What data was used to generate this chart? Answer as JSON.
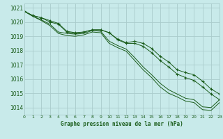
{
  "title": "Graphe pression niveau de la mer (hPa)",
  "background_color": "#c8eaea",
  "grid_color": "#aacccc",
  "line_color": "#1a5c1a",
  "marker_color": "#1a5c1a",
  "xlim": [
    0,
    23
  ],
  "ylim": [
    1013.5,
    1021.3
  ],
  "xticks": [
    0,
    1,
    2,
    3,
    4,
    5,
    6,
    7,
    8,
    9,
    10,
    11,
    12,
    13,
    14,
    15,
    16,
    17,
    18,
    19,
    20,
    21,
    22,
    23
  ],
  "yticks": [
    1014,
    1015,
    1016,
    1017,
    1018,
    1019,
    1020,
    1021
  ],
  "series": [
    {
      "values": [
        1020.75,
        1020.45,
        1020.3,
        1020.1,
        1019.9,
        1019.35,
        1019.25,
        1019.3,
        1019.45,
        1019.45,
        1019.25,
        1018.8,
        1018.55,
        1018.65,
        1018.5,
        1018.15,
        1017.6,
        1017.2,
        1016.65,
        1016.45,
        1016.3,
        1015.85,
        1015.3,
        1014.95
      ],
      "marker": true
    },
    {
      "values": [
        1020.75,
        1020.45,
        1020.3,
        1020.0,
        1019.85,
        1019.3,
        1019.2,
        1019.3,
        1019.45,
        1019.45,
        1019.25,
        1018.75,
        1018.5,
        1018.5,
        1018.3,
        1017.85,
        1017.3,
        1016.85,
        1016.35,
        1016.1,
        1015.9,
        1015.45,
        1014.95,
        1014.55
      ],
      "marker": true
    },
    {
      "values": [
        1020.75,
        1020.4,
        1020.15,
        1019.85,
        1019.3,
        1019.2,
        1019.15,
        1019.2,
        1019.4,
        1019.35,
        1018.65,
        1018.35,
        1018.1,
        1017.5,
        1016.85,
        1016.3,
        1015.7,
        1015.25,
        1014.95,
        1014.65,
        1014.55,
        1014.05,
        1014.0,
        1014.55
      ],
      "marker": false
    },
    {
      "values": [
        1020.75,
        1020.4,
        1020.1,
        1019.75,
        1019.2,
        1019.05,
        1019.0,
        1019.1,
        1019.3,
        1019.25,
        1018.5,
        1018.2,
        1017.95,
        1017.3,
        1016.65,
        1016.1,
        1015.45,
        1015.0,
        1014.75,
        1014.45,
        1014.35,
        1013.85,
        1013.8,
        1014.35
      ],
      "marker": false
    }
  ]
}
